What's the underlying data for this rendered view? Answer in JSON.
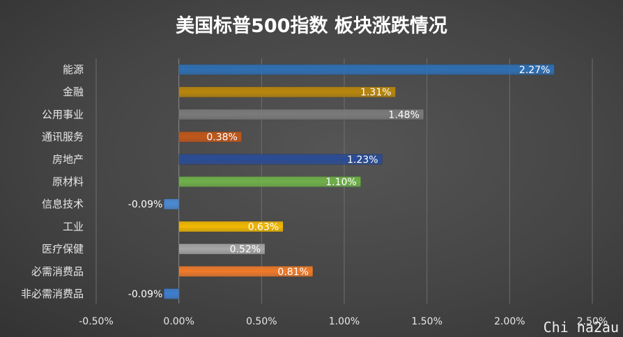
{
  "chart_data": {
    "type": "bar",
    "orientation": "horizontal",
    "title": "美国标普500指数 板块涨跌情况",
    "categories": [
      "能源",
      "金融",
      "公用事业",
      "通讯服务",
      "房地产",
      "原材料",
      "信息技术",
      "工业",
      "医疗保健",
      "必需消费品",
      "非必需消费品"
    ],
    "values": [
      2.27,
      1.31,
      1.48,
      0.38,
      1.23,
      1.1,
      -0.09,
      0.63,
      0.52,
      0.81,
      -0.09
    ],
    "value_labels": [
      "2.27%",
      "1.31%",
      "1.48%",
      "0.38%",
      "1.23%",
      "1.10%",
      "-0.09%",
      "0.63%",
      "0.52%",
      "0.81%",
      "-0.09%"
    ],
    "bar_colors": [
      "#2e6fb3",
      "#b8860b",
      "#7a7a7a",
      "#c0561a",
      "#2a4c94",
      "#6fb04a",
      "#4a8ad4",
      "#f2b800",
      "#a6a6a6",
      "#f07a2a",
      "#3e7fd0"
    ],
    "xlim": [
      -0.5,
      2.5
    ],
    "x_ticks": [
      -0.5,
      0,
      0.5,
      1.0,
      1.5,
      2.0,
      2.5
    ],
    "x_tick_labels": [
      "-0.50%",
      "0.00%",
      "0.50%",
      "1.00%",
      "1.50%",
      "2.00%",
      "2.50%"
    ],
    "xlabel": "",
    "ylabel": "",
    "grid": true,
    "legend": "none"
  },
  "watermark": "Chi na2au"
}
